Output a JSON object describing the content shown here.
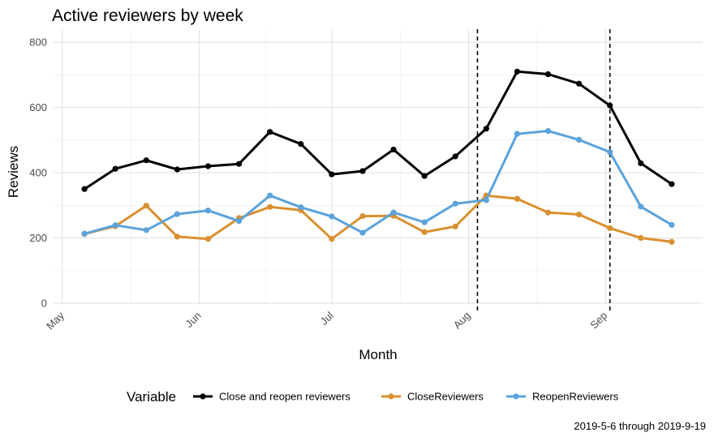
{
  "chart_data": {
    "type": "line",
    "title": "Active reviewers by week",
    "xlabel": "Month",
    "ylabel": "Reviews",
    "caption": "2019-5-6 through 2019-9-19",
    "legend": {
      "title": "Variable",
      "position": "bottom"
    },
    "x_ticks": [
      {
        "label": "May",
        "date": "2019-05-01"
      },
      {
        "label": "Jun",
        "date": "2019-06-01"
      },
      {
        "label": "Jul",
        "date": "2019-07-01"
      },
      {
        "label": "Aug",
        "date": "2019-08-01"
      },
      {
        "label": "Sep",
        "date": "2019-09-01"
      }
    ],
    "y_ticks": [
      0,
      200,
      400,
      600,
      800
    ],
    "xlim": [
      "2019-04-29",
      "2019-09-23"
    ],
    "ylim": [
      -5,
      840
    ],
    "grid": true,
    "vlines": [
      "2019-08-03",
      "2019-09-02"
    ],
    "x": [
      "2019-05-06",
      "2019-05-13",
      "2019-05-20",
      "2019-05-27",
      "2019-06-03",
      "2019-06-10",
      "2019-06-17",
      "2019-06-24",
      "2019-07-01",
      "2019-07-08",
      "2019-07-15",
      "2019-07-22",
      "2019-07-29",
      "2019-08-05",
      "2019-08-12",
      "2019-08-19",
      "2019-08-26",
      "2019-09-02",
      "2019-09-09",
      "2019-09-16"
    ],
    "series": [
      {
        "name": "Close and reopen reviewers",
        "color": "#000000",
        "values": [
          350,
          412,
          438,
          410,
          420,
          427,
          525,
          488,
          395,
          405,
          471,
          390,
          450,
          535,
          710,
          702,
          673,
          606,
          429,
          365
        ]
      },
      {
        "name": "CloseReviewers",
        "color": "#D9902F",
        "values": [
          212,
          236,
          299,
          204,
          197,
          261,
          295,
          285,
          197,
          267,
          268,
          218,
          235,
          330,
          320,
          278,
          272,
          230,
          200,
          188
        ]
      },
      {
        "name": "ReopenReviewers",
        "color": "#5BA3DC",
        "values": [
          213,
          239,
          224,
          273,
          284,
          252,
          330,
          294,
          266,
          216,
          278,
          248,
          305,
          316,
          519,
          528,
          501,
          463,
          296,
          240
        ]
      }
    ]
  }
}
